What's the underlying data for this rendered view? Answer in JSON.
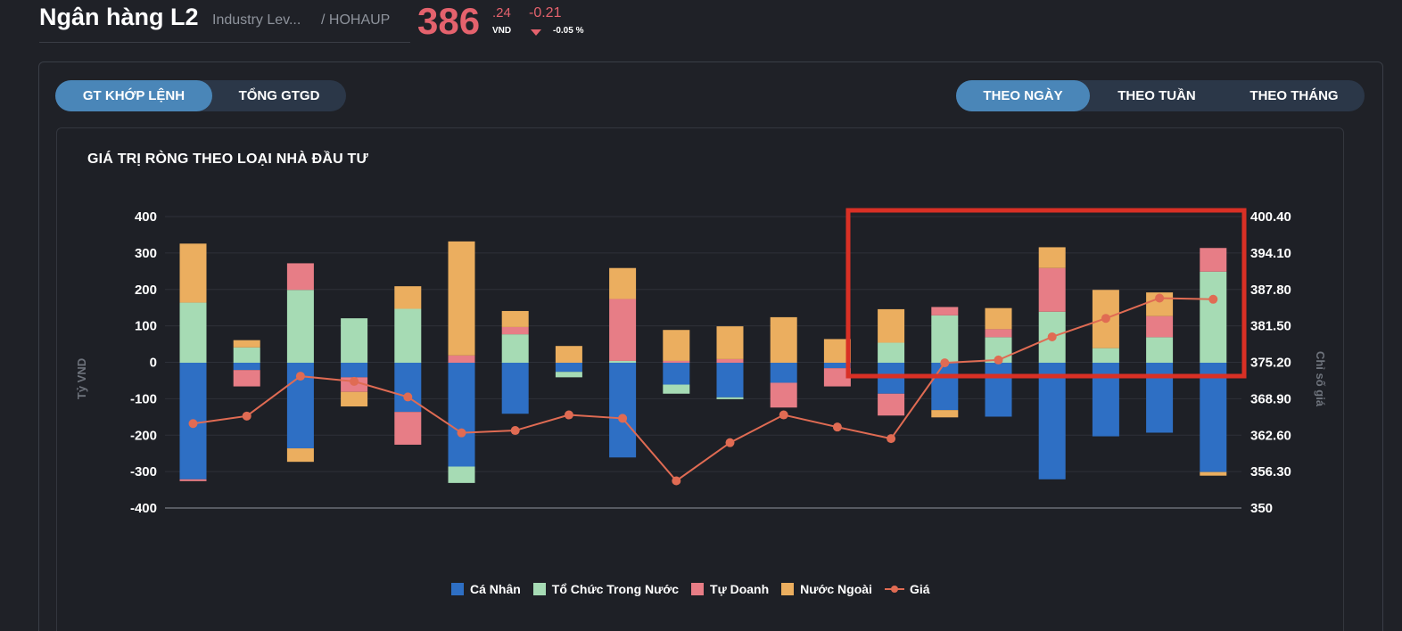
{
  "header": {
    "title": "Ngân hàng L2",
    "subtitle": "Industry Lev...",
    "code": "/ HOHAUP",
    "price_int": "386",
    "price_dec": ".24",
    "price_unit": "VND",
    "change_abs": "-0.21",
    "change_pct": "-0.05 %"
  },
  "tabs_left": {
    "items": [
      "GT KHỚP LỆNH",
      "TỔNG GTGD"
    ],
    "active": "GT KHỚP LỆNH"
  },
  "tabs_right": {
    "items": [
      "THEO NGÀY",
      "THEO TUẦN",
      "THEO THÁNG"
    ],
    "active": "THEO NGÀY"
  },
  "colors": {
    "ca_nhan": "#2e6fc4",
    "to_chuc": "#a6dbb4",
    "tu_doanh": "#e77d86",
    "nuoc_ngoai": "#ebae5f",
    "gia": "#e06b53",
    "highlight": "#d93025"
  },
  "chart_data": {
    "type": "bar",
    "stacked": true,
    "title": "GIÁ TRỊ RÒNG THEO LOẠI NHÀ ĐẦU TƯ",
    "ylabel": "Tỷ VND",
    "y2label": "Chỉ số giá",
    "ylim": [
      -400,
      400
    ],
    "y2lim": [
      350,
      400.4
    ],
    "yticks": [
      "400",
      "300",
      "200",
      "100",
      "0",
      "-100",
      "-200",
      "-300",
      "-400"
    ],
    "y2ticks": [
      "400.40",
      "394.10",
      "387.80",
      "381.50",
      "375.20",
      "368.90",
      "362.60",
      "356.30",
      "350"
    ],
    "grid": true,
    "legend_position": "bottom",
    "highlight_box": "last 7 bars",
    "series": [
      {
        "name": "Cá Nhân",
        "values": [
          -320,
          -20,
          -235,
          -40,
          -135,
          -285,
          -140,
          -25,
          -260,
          -60,
          -95,
          -55,
          -15,
          -85,
          -130,
          -148,
          -320,
          -202,
          -192,
          -300
        ]
      },
      {
        "name": "Tổ Chức Trong Nước",
        "values": [
          165,
          42,
          200,
          122,
          148,
          -45,
          78,
          -15,
          5,
          -25,
          -5,
          0,
          0,
          55,
          130,
          70,
          140,
          40,
          70,
          250
        ]
      },
      {
        "name": "Tự Doanh",
        "values": [
          -5,
          -45,
          73,
          -40,
          -90,
          20,
          20,
          0,
          170,
          5,
          10,
          -68,
          -50,
          -60,
          23,
          22,
          120,
          0,
          58,
          65
        ]
      },
      {
        "name": "Nước Ngoài",
        "values": [
          162,
          20,
          -37,
          -40,
          62,
          313,
          44,
          46,
          85,
          85,
          90,
          125,
          65,
          92,
          -20,
          58,
          57,
          160,
          65,
          -10
        ]
      },
      {
        "name": "Giá",
        "type": "line",
        "values": [
          364.6,
          365.9,
          372.8,
          371.9,
          369.2,
          363.0,
          363.4,
          366.1,
          365.5,
          354.7,
          361.3,
          366.1,
          364.0,
          362.0,
          375.1,
          375.6,
          379.6,
          382.8,
          386.3,
          386.1
        ]
      }
    ]
  }
}
